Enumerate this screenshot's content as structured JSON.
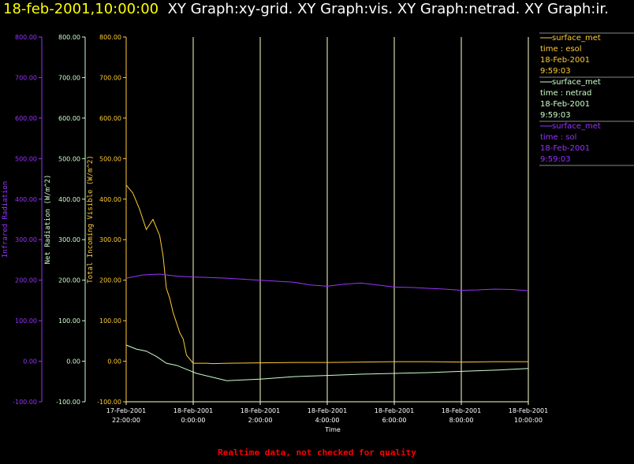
{
  "header": {
    "timestamp": "18-feb-2001,10:00:00",
    "graphs": "XY Graph:xy-grid.  XY Graph:vis.  XY Graph:netrad.  XY Graph:ir."
  },
  "footer": "Realtime data, not checked for quality",
  "legend": [
    {
      "line": "surface_met",
      "field": "time : esol",
      "date": "18-Feb-2001",
      "time": "9:59:03",
      "color": "#ffcc33"
    },
    {
      "line": "surface_met",
      "field": "time : netrad",
      "date": "18-Feb-2001",
      "time": "9:59:03",
      "color": "#ccffcc"
    },
    {
      "line": "surface_met",
      "field": "time : sol",
      "date": "18-Feb-2001",
      "time": "9:59:03",
      "color": "#9933ff"
    }
  ],
  "chart_data": {
    "type": "line",
    "xlabel": "Time",
    "x_ticks": [
      {
        "date": "17-Feb-2001",
        "time": "22:00:00",
        "hour": 0
      },
      {
        "date": "18-Feb-2001",
        "time": "0:00:00",
        "hour": 2
      },
      {
        "date": "18-Feb-2001",
        "time": "2:00:00",
        "hour": 4
      },
      {
        "date": "18-Feb-2001",
        "time": "4:00:00",
        "hour": 6
      },
      {
        "date": "18-Feb-2001",
        "time": "6:00:00",
        "hour": 8
      },
      {
        "date": "18-Feb-2001",
        "time": "8:00:00",
        "hour": 10
      },
      {
        "date": "18-Feb-2001",
        "time": "10:00:00",
        "hour": 12
      }
    ],
    "grid": "vertical",
    "y_axes": [
      {
        "label": "Infrared Radiation",
        "color": "#9933ff",
        "ylim": [
          -100,
          800
        ],
        "ticks": [
          "-100.00",
          "0.00",
          "100.00",
          "200.00",
          "300.00",
          "400.00",
          "500.00",
          "600.00",
          "700.00",
          "800.00"
        ]
      },
      {
        "label": "Net Radiation (W/m^2)",
        "color": "#ccffcc",
        "ylim": [
          -100,
          800
        ],
        "ticks": [
          "-100.00",
          "0.00",
          "100.00",
          "200.00",
          "300.00",
          "400.00",
          "500.00",
          "600.00",
          "700.00",
          "800.00"
        ]
      },
      {
        "label": "Total Incoming Visible (W/m^2)",
        "color": "#ffcc33",
        "ylim": [
          -100,
          800
        ],
        "ticks": [
          "-100.00",
          "0.00",
          "100.00",
          "200.00",
          "300.00",
          "400.00",
          "500.00",
          "600.00",
          "700.00",
          "800.00"
        ]
      }
    ],
    "series": [
      {
        "name": "time : esol",
        "color": "#ffcc33",
        "x": [
          0,
          0.2,
          0.4,
          0.6,
          0.8,
          1.0,
          1.1,
          1.2,
          1.3,
          1.4,
          1.5,
          1.6,
          1.7,
          1.8,
          2.0,
          2.2,
          2.4,
          2.6,
          3,
          4,
          5,
          6,
          7,
          8,
          9,
          10,
          11,
          12
        ],
        "y": [
          435,
          415,
          375,
          325,
          350,
          310,
          260,
          180,
          155,
          120,
          95,
          70,
          55,
          15,
          -5,
          -5,
          -5,
          -6,
          -5,
          -4,
          -3,
          -3,
          -2,
          -1,
          -1,
          -2,
          -1,
          -1
        ]
      },
      {
        "name": "time : netrad",
        "color": "#ccffcc",
        "x": [
          0,
          0.3,
          0.6,
          0.9,
          1.2,
          1.5,
          1.8,
          2.1,
          2.5,
          3,
          4,
          5,
          6,
          7,
          8,
          9,
          10,
          11,
          12
        ],
        "y": [
          40,
          30,
          25,
          12,
          -5,
          -10,
          -20,
          -30,
          -38,
          -48,
          -44,
          -38,
          -35,
          -32,
          -30,
          -28,
          -25,
          -22,
          -18
        ]
      },
      {
        "name": "time : sol",
        "color": "#9933ff",
        "x": [
          0,
          0.5,
          1.0,
          1.5,
          2,
          3,
          4,
          5,
          5.5,
          6,
          6.5,
          7,
          7.5,
          8,
          8.5,
          9,
          9.5,
          10,
          10.5,
          11,
          11.5,
          12
        ],
        "y": [
          205,
          213,
          215,
          210,
          208,
          205,
          200,
          195,
          188,
          185,
          190,
          193,
          188,
          183,
          182,
          180,
          178,
          175,
          176,
          178,
          177,
          174
        ]
      }
    ]
  }
}
